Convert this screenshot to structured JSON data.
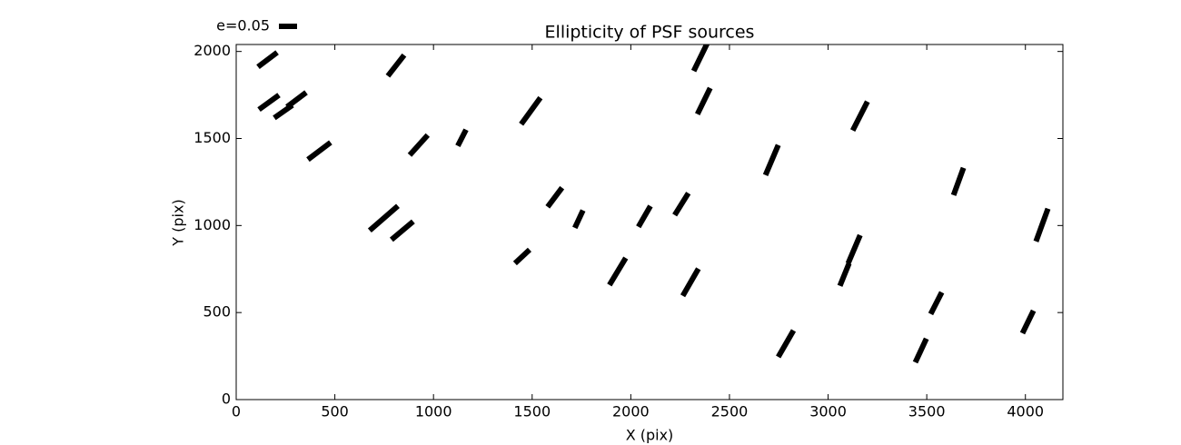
{
  "chart_data": {
    "type": "whisker",
    "title": "Ellipticity of PSF sources",
    "xlabel": "X (pix)",
    "ylabel": "Y (pix)",
    "color": "#000000",
    "legend": {
      "label": "e=0.05",
      "value": 0.05
    },
    "x": [
      159,
      810,
      2356,
      166,
      239,
      306,
      421,
      925,
      1144,
      1493,
      2370,
      3162,
      2715,
      3661,
      748,
      842,
      1615,
      1737,
      2069,
      2257,
      4084,
      3132,
      3083,
      1450,
      1933,
      2303,
      3548,
      4013,
      2786,
      3470
    ],
    "y": [
      1953,
      1919,
      1974,
      1708,
      1655,
      1723,
      1428,
      1462,
      1504,
      1658,
      1715,
      1629,
      1376,
      1253,
      1042,
      971,
      1162,
      1037,
      1052,
      1123,
      1003,
      864,
      718,
      822,
      736,
      674,
      554,
      446,
      321,
      282
    ],
    "e": [
      0.066,
      0.073,
      0.092,
      0.068,
      0.061,
      0.066,
      0.078,
      0.074,
      0.05,
      0.09,
      0.08,
      0.089,
      0.09,
      0.08,
      0.103,
      0.078,
      0.066,
      0.053,
      0.066,
      0.071,
      0.096,
      0.084,
      0.067,
      0.055,
      0.087,
      0.086,
      0.067,
      0.069,
      0.084,
      0.072
    ],
    "angle": [
      37,
      52,
      64,
      36,
      35,
      37,
      37,
      48,
      63,
      54,
      64,
      63,
      67,
      70,
      41,
      40,
      53,
      65,
      60,
      58,
      70,
      67,
      68,
      43,
      59,
      60,
      63,
      64,
      60,
      65
    ],
    "xlim": [
      0,
      4190
    ],
    "ylim": [
      0,
      2040
    ],
    "xticks": [
      0,
      500,
      1000,
      1500,
      2000,
      2500,
      3000,
      3500,
      4000
    ],
    "yticks": [
      0,
      500,
      1000,
      1500,
      2000
    ]
  }
}
